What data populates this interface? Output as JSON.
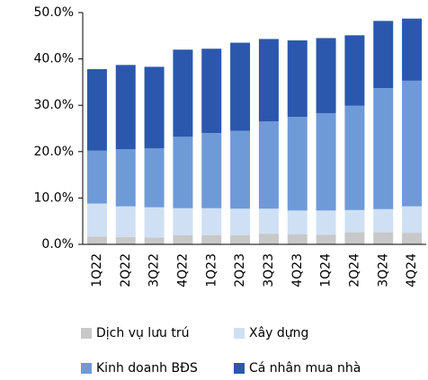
{
  "chart_data": {
    "type": "stacked_bar",
    "categories": [
      "1Q22",
      "2Q22",
      "3Q22",
      "4Q22",
      "1Q23",
      "2Q23",
      "3Q23",
      "4Q23",
      "1Q24",
      "2Q24",
      "3Q24",
      "4Q24"
    ],
    "series": [
      {
        "name": "Dịch vụ lưu trú",
        "color": "#c8c8c8",
        "values": [
          1.7,
          1.6,
          1.5,
          2.0,
          2.0,
          2.0,
          2.3,
          2.2,
          2.1,
          2.6,
          2.6,
          2.5
        ]
      },
      {
        "name": "Xây dựng",
        "color": "#cfe0f5",
        "values": [
          7.1,
          6.6,
          6.5,
          5.8,
          5.8,
          5.7,
          5.4,
          5.1,
          5.2,
          4.8,
          5.0,
          5.7
        ]
      },
      {
        "name": "Kinh doanh BĐS",
        "color": "#6f9ad8",
        "values": [
          11.4,
          12.3,
          12.7,
          15.4,
          16.2,
          16.8,
          18.8,
          20.2,
          21.0,
          22.5,
          26.1,
          27.1
        ]
      },
      {
        "name": "Cá nhân mua nhà",
        "color": "#2b58ad",
        "values": [
          17.6,
          18.2,
          17.6,
          18.8,
          18.2,
          19.0,
          17.8,
          16.5,
          16.2,
          15.2,
          14.5,
          13.4
        ]
      }
    ],
    "ylim": [
      0,
      50
    ],
    "yticks": [
      {
        "value": 0,
        "label": "0.0%"
      },
      {
        "value": 10,
        "label": "10.0%"
      },
      {
        "value": 20,
        "label": "20.0%"
      },
      {
        "value": 30,
        "label": "30.0%"
      },
      {
        "value": 40,
        "label": "40.0%"
      },
      {
        "value": 50,
        "label": "50.0%"
      }
    ],
    "legend": "bottom"
  }
}
